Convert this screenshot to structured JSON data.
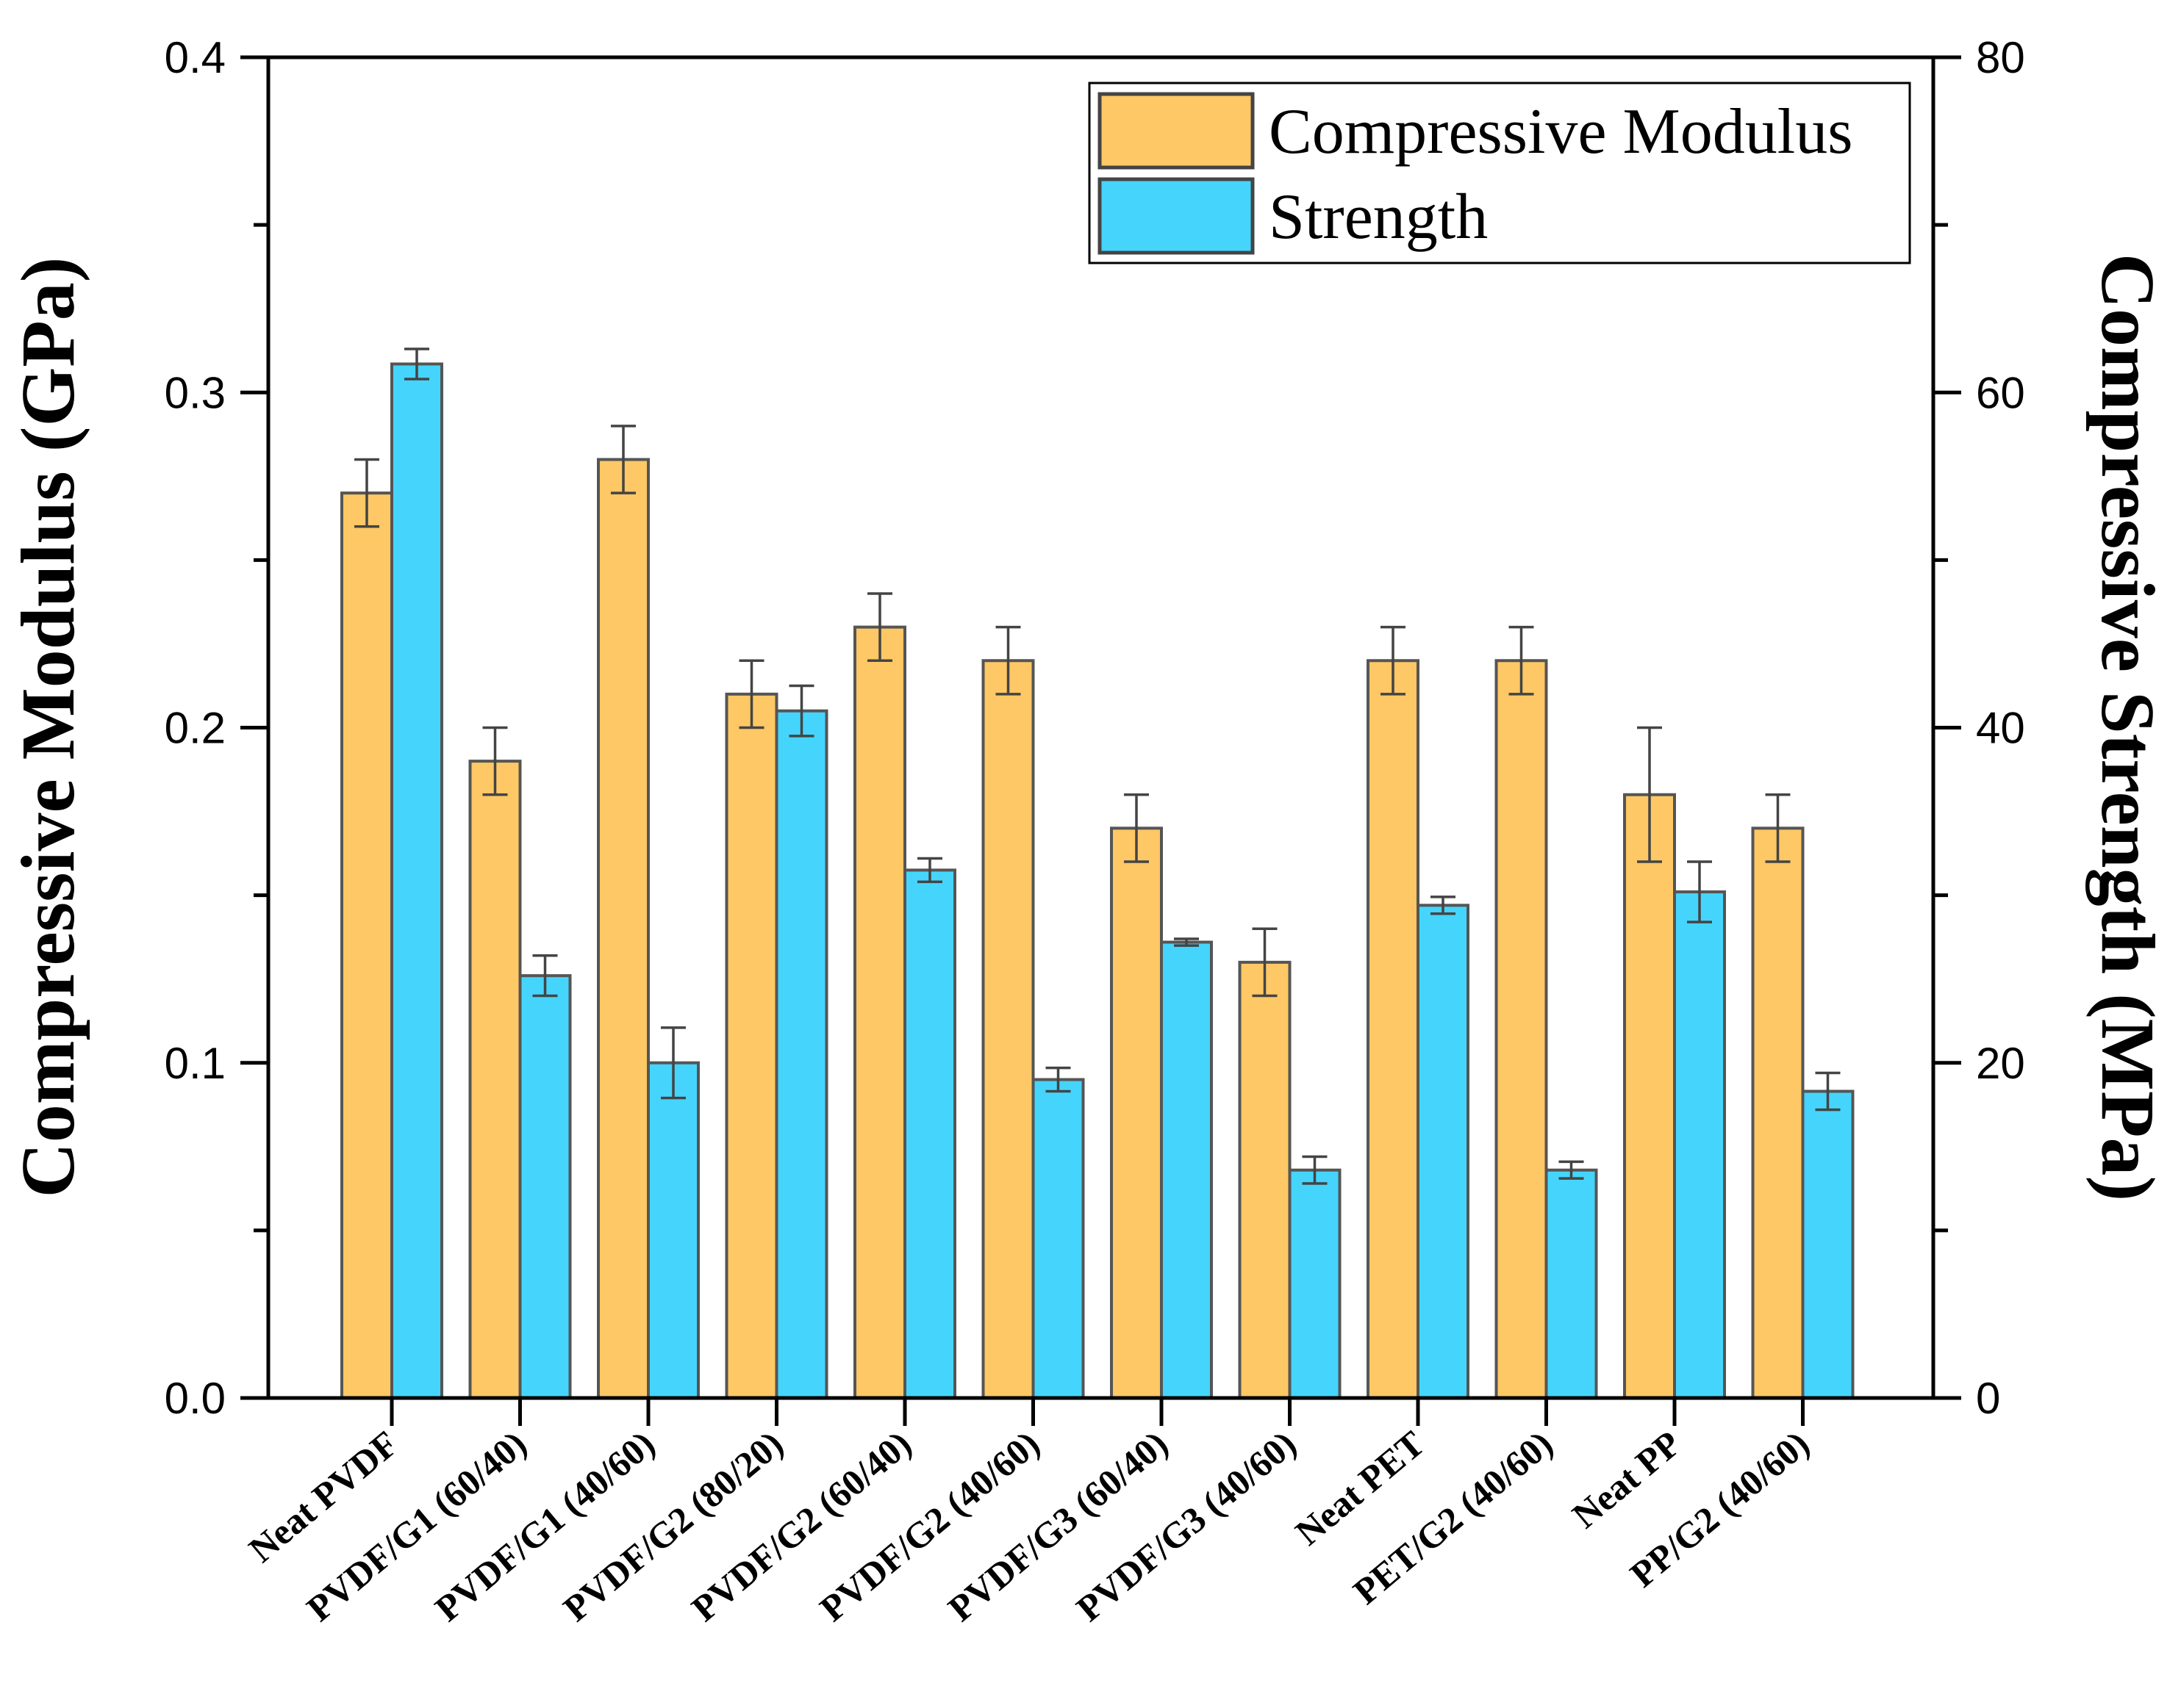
{
  "chart_data": {
    "type": "bar",
    "categories": [
      "Neat PVDF",
      "PVDF/G1 (60/40)",
      "PVDF/G1 (40/60)",
      "PVDF/G2 (80/20)",
      "PVDF/G2 (60/40)",
      "PVDF/G2 (40/60)",
      "PVDF/G3 (60/40)",
      "PVDF/G3 (40/60)",
      "Neat PET",
      "PET/G2 (40/60)",
      "Neat PP",
      "PP/G2 (40/60)"
    ],
    "series": [
      {
        "name": "Compressive Modulus",
        "axis": "left",
        "color": "#FDC865",
        "values": [
          0.27,
          0.19,
          0.28,
          0.21,
          0.23,
          0.22,
          0.17,
          0.13,
          0.22,
          0.22,
          0.18,
          0.17
        ],
        "errors": [
          0.01,
          0.01,
          0.01,
          0.01,
          0.01,
          0.01,
          0.01,
          0.01,
          0.01,
          0.01,
          0.02,
          0.01
        ]
      },
      {
        "name": "Strength",
        "axis": "right",
        "color": "#45D5FC",
        "values": [
          61.7,
          25.2,
          20.0,
          41.0,
          31.5,
          19.0,
          27.2,
          13.6,
          29.4,
          13.6,
          30.2,
          18.3
        ],
        "errors": [
          0.9,
          1.2,
          2.1,
          1.5,
          0.7,
          0.7,
          0.2,
          0.8,
          0.5,
          0.5,
          1.8,
          1.1
        ]
      }
    ],
    "ylabel": "Compressive Modulus (GPa)",
    "y2label": "Compressive Strength (MPa)",
    "ylim": [
      0,
      0.4
    ],
    "y2lim": [
      0,
      80
    ],
    "yticks": [
      "0.0",
      "0.1",
      "0.2",
      "0.3",
      "0.4"
    ],
    "y2ticks": [
      "0",
      "20",
      "40",
      "60",
      "80"
    ],
    "grid": false,
    "legend": "top-right"
  }
}
